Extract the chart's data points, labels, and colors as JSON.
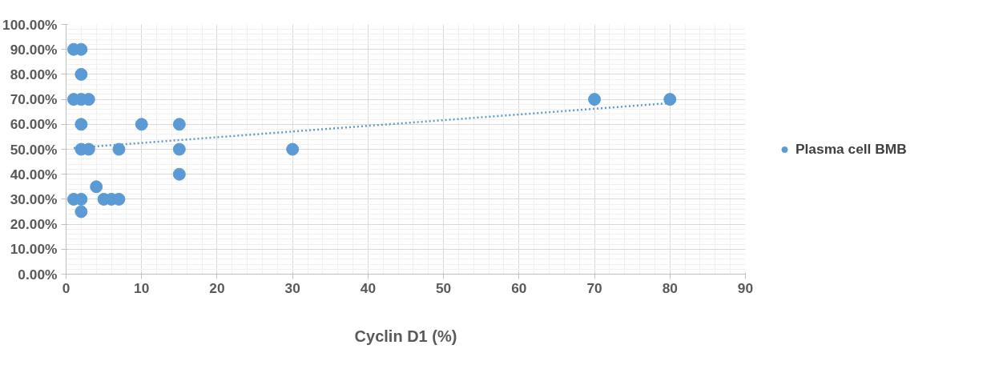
{
  "chart_data": {
    "type": "scatter",
    "xlabel": "Cyclin D1 (%)",
    "xlim": [
      0,
      90
    ],
    "xticks": [
      0,
      10,
      20,
      30,
      40,
      50,
      60,
      70,
      80,
      90
    ],
    "ylim": [
      0,
      100
    ],
    "yticks": [
      {
        "value": 0,
        "label": "0.00%"
      },
      {
        "value": 10,
        "label": "10.00%"
      },
      {
        "value": 20,
        "label": "20.00%"
      },
      {
        "value": 30,
        "label": "30.00%"
      },
      {
        "value": 40,
        "label": "40.00%"
      },
      {
        "value": 50,
        "label": "50.00%"
      },
      {
        "value": 60,
        "label": "60.00%"
      },
      {
        "value": 70,
        "label": "70.00%"
      },
      {
        "value": 80,
        "label": "80.00%"
      },
      {
        "value": 90,
        "label": "90.00%"
      },
      {
        "value": 100,
        "label": "100.00%"
      }
    ],
    "grid": true,
    "legend": "right",
    "series": [
      {
        "name": "Plasma cell BMB",
        "color": "#5b9bd5",
        "marker": "circle",
        "x": [
          1,
          2,
          2,
          1,
          2,
          3,
          2,
          2,
          3,
          7,
          10,
          15,
          15,
          15,
          30,
          70,
          80,
          4,
          1,
          2,
          5,
          6,
          7,
          2
        ],
        "values": [
          90,
          90,
          80,
          70,
          70,
          70,
          60,
          50,
          50,
          50,
          60,
          60,
          50,
          40,
          50,
          70,
          70,
          35,
          30,
          30,
          30,
          30,
          30,
          25
        ]
      },
      {
        "type": "line",
        "color": "#5b9bd5",
        "line_style": "dotted",
        "x": [
          1,
          80
        ],
        "values": [
          50.5,
          68.5
        ]
      }
    ]
  }
}
